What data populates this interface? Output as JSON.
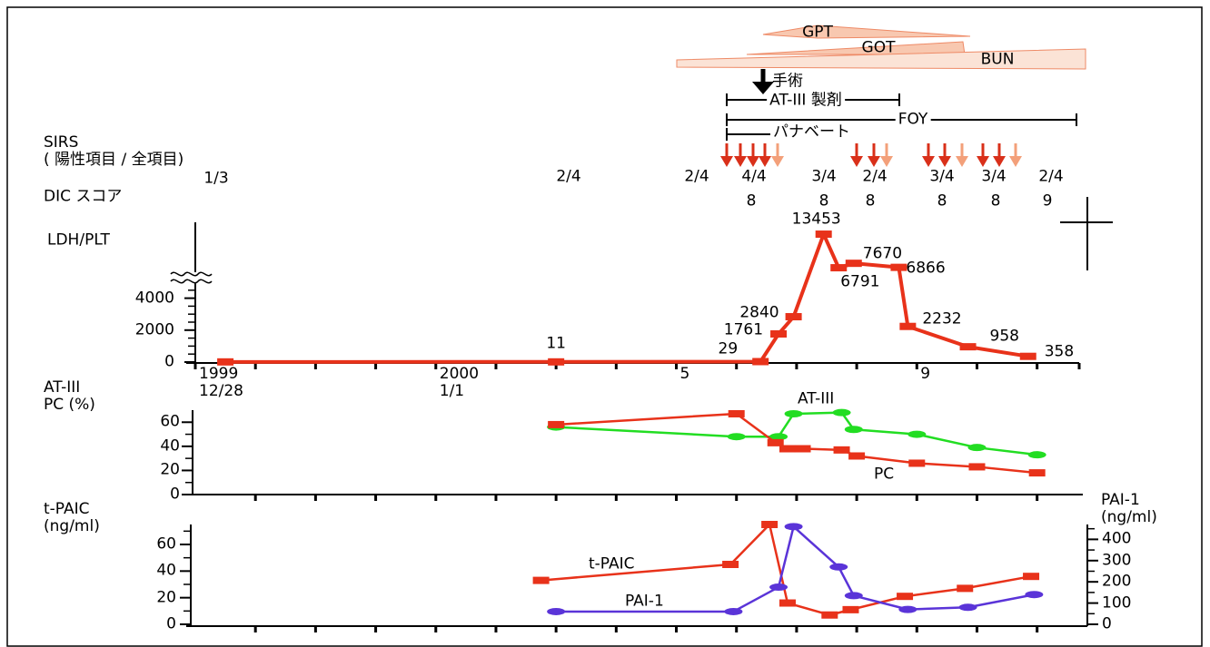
{
  "annotations": {
    "enzymes": [
      "GPT",
      "GOT",
      "BUN"
    ],
    "treatments": {
      "surgery": "手術",
      "at3": "AT-III 製剤",
      "foy": "FOY",
      "panabate": "パナベート"
    },
    "sirs": {
      "label": "SIRS\n( 陽性項目 / 全項目)",
      "values": [
        "1/3",
        "2/4",
        "2/4",
        "4/4",
        "3/4",
        "2/4",
        "3/4",
        "3/4",
        "2/4"
      ]
    },
    "dic": {
      "label": "DIC スコア",
      "values": [
        8,
        8,
        8,
        8,
        8,
        9
      ]
    }
  },
  "chart_data": [
    {
      "type": "line",
      "ylabel": "LDH/PLT",
      "color": "#e8321a",
      "x": [
        0.5,
        6,
        9.4,
        9.7,
        9.95,
        10.45,
        10.7,
        10.95,
        11.7,
        11.85,
        12.85,
        13.85
      ],
      "values": [
        10,
        11,
        29,
        1761,
        2840,
        13453,
        6791,
        7670,
        6866,
        2232,
        958,
        358
      ],
      "xlim": [
        0,
        14.7
      ],
      "xticks": [
        {
          "value": 0,
          "label": "1999\n12/28"
        },
        {
          "value": 4,
          "label": "2000\n1/1"
        },
        {
          "value": 8,
          "label": "5"
        },
        {
          "value": 12,
          "label": "9"
        }
      ],
      "xminorticks": [
        1,
        2,
        3,
        5,
        6,
        7,
        9,
        10,
        11,
        13,
        14,
        14.7
      ],
      "ylim": [
        0,
        14000
      ],
      "ybreak": 5000,
      "yticks": [
        0,
        2000,
        4000
      ],
      "yminorticks": [
        500,
        1000,
        1500,
        2500,
        3000,
        3500,
        4500
      ]
    },
    {
      "type": "line",
      "ylabel": "AT-III\nPC (%)",
      "xlim": [
        0,
        14.7
      ],
      "xminorticks": [
        1,
        2,
        3,
        4,
        5,
        6,
        7,
        8,
        9,
        10,
        11,
        12,
        13,
        14
      ],
      "ylim": [
        0,
        70
      ],
      "yticks": [
        0,
        20,
        40,
        60
      ],
      "yminorticks": [
        10,
        30,
        50
      ],
      "series": [
        {
          "name": "AT-III",
          "color": "#22dd22",
          "marker": "ellipse",
          "x": [
            6,
            9,
            9.7,
            9.95,
            10.75,
            10.95,
            12,
            13,
            14
          ],
          "values": [
            56,
            48,
            48,
            67,
            68,
            54,
            50,
            39,
            33
          ]
        },
        {
          "name": "PC",
          "color": "#e8321a",
          "marker": "rect",
          "x": [
            6,
            9,
            9.65,
            9.85,
            10.1,
            10.75,
            11,
            12,
            13,
            14
          ],
          "values": [
            58,
            67,
            43,
            38,
            38,
            37,
            32,
            26,
            23,
            18
          ]
        }
      ]
    },
    {
      "type": "line",
      "ylabel": "t-PAIC\n(ng/ml)",
      "y2label": "PAI-1\n(ng/ml)",
      "xlim": [
        0,
        14.7
      ],
      "xminorticks": [
        1,
        2,
        3,
        4,
        5,
        6,
        7,
        8,
        9,
        10,
        11,
        12,
        13,
        14
      ],
      "ylim": [
        0,
        75
      ],
      "yticks": [
        0,
        20,
        40,
        60
      ],
      "yminorticks": [
        10,
        30,
        50,
        70
      ],
      "y2lim": [
        0,
        470
      ],
      "y2ticks": [
        0,
        100,
        200,
        300,
        400
      ],
      "y2minorticks": [
        50,
        150,
        250,
        350,
        450
      ],
      "series": [
        {
          "name": "t-PAIC",
          "color": "#e8321a",
          "marker": "rect",
          "x": [
            5.75,
            8.9,
            9.55,
            9.85,
            10.55,
            10.9,
            11.8,
            12.8,
            13.9
          ],
          "values": [
            33,
            45,
            75,
            16,
            7,
            11,
            21,
            27,
            36
          ]
        },
        {
          "name": "PAI-1",
          "color": "#5a34d8",
          "marker": "ellipse",
          "axis": "y2",
          "x": [
            6,
            8.95,
            9.7,
            9.95,
            10.7,
            10.95,
            11.85,
            12.85,
            13.95
          ],
          "values": [
            60,
            60,
            175,
            460,
            270,
            135,
            70,
            80,
            140
          ]
        }
      ]
    }
  ]
}
